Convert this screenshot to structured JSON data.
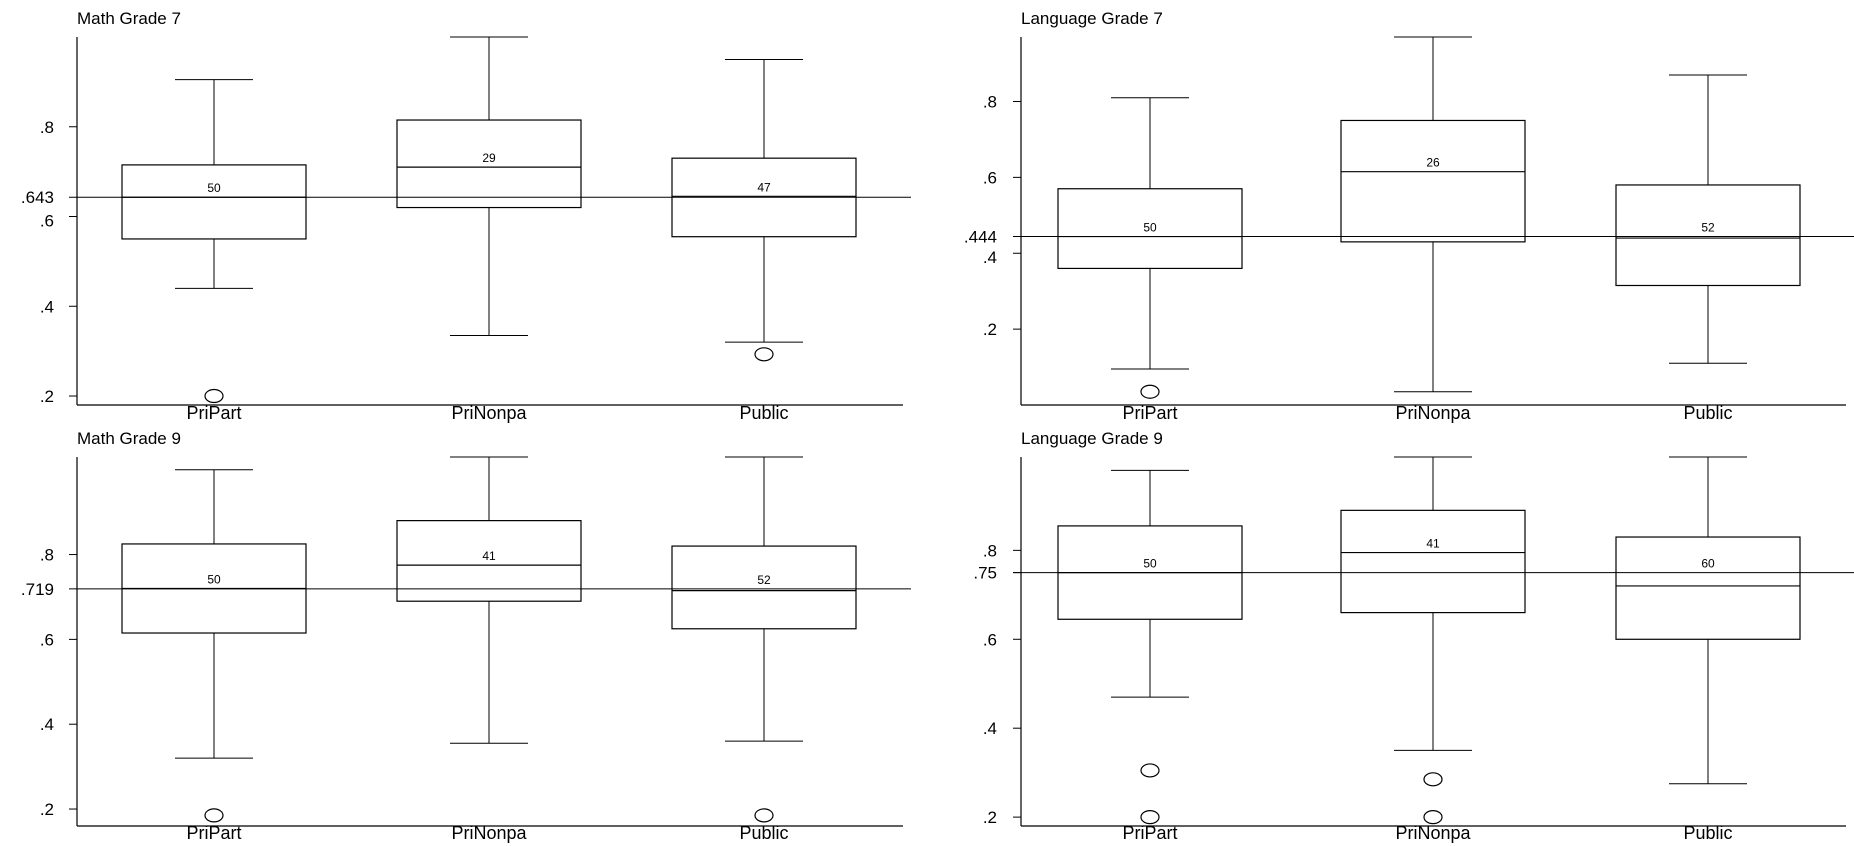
{
  "chart_data": [
    {
      "type": "box",
      "title": "Math Grade 7",
      "categories": [
        "PriPart",
        "PriNonpa",
        "Public"
      ],
      "ylim": [
        0.18,
        1.0
      ],
      "yticks": [
        ".2",
        ".4",
        ".6",
        ".8"
      ],
      "yticks_values": [
        0.2,
        0.4,
        0.6,
        0.8
      ],
      "reference_line": {
        "value": 0.643,
        "label": ".643"
      },
      "boxes": [
        {
          "category": "PriPart",
          "min": 0.44,
          "q1": 0.55,
          "median": 0.643,
          "q3": 0.715,
          "max": 0.905,
          "n": "50",
          "outliers": [
            0.2
          ]
        },
        {
          "category": "PriNonpa",
          "min": 0.335,
          "q1": 0.62,
          "median": 0.71,
          "q3": 0.815,
          "max": 1.0,
          "n": "29",
          "outliers": []
        },
        {
          "category": "Public",
          "min": 0.32,
          "q1": 0.555,
          "median": 0.645,
          "q3": 0.73,
          "max": 0.95,
          "n": "47",
          "outliers": [
            0.293
          ]
        }
      ]
    },
    {
      "type": "box",
      "title": "Language Grade 7",
      "categories": [
        "PriPart",
        "PriNonpa",
        "Public"
      ],
      "ylim": [
        0.0,
        0.97
      ],
      "yticks": [
        ".2",
        ".4",
        ".6",
        ".8"
      ],
      "yticks_values": [
        0.2,
        0.4,
        0.6,
        0.8
      ],
      "reference_line": {
        "value": 0.444,
        "label": ".444"
      },
      "boxes": [
        {
          "category": "PriPart",
          "min": 0.095,
          "q1": 0.36,
          "median": 0.444,
          "q3": 0.57,
          "max": 0.81,
          "n": "50",
          "outliers": [
            0.035
          ]
        },
        {
          "category": "PriNonpa",
          "min": 0.035,
          "q1": 0.43,
          "median": 0.615,
          "q3": 0.75,
          "max": 0.97,
          "n": "26",
          "outliers": []
        },
        {
          "category": "Public",
          "min": 0.11,
          "q1": 0.315,
          "median": 0.44,
          "q3": 0.58,
          "max": 0.87,
          "n": "52",
          "outliers": []
        }
      ]
    },
    {
      "type": "box",
      "title": "Math Grade 9",
      "categories": [
        "PriPart",
        "PriNonpa",
        "Public"
      ],
      "ylim": [
        0.16,
        1.03
      ],
      "yticks": [
        ".2",
        ".4",
        ".6",
        ".8"
      ],
      "yticks_values": [
        0.2,
        0.4,
        0.6,
        0.8
      ],
      "reference_line": {
        "value": 0.719,
        "label": ".719"
      },
      "boxes": [
        {
          "category": "PriPart",
          "min": 0.32,
          "q1": 0.615,
          "median": 0.72,
          "q3": 0.825,
          "max": 1.0,
          "n": "50",
          "outliers": [
            0.185
          ]
        },
        {
          "category": "PriNonpa",
          "min": 0.355,
          "q1": 0.69,
          "median": 0.775,
          "q3": 0.88,
          "max": 1.03,
          "n": "41",
          "outliers": []
        },
        {
          "category": "Public",
          "min": 0.36,
          "q1": 0.625,
          "median": 0.715,
          "q3": 0.82,
          "max": 1.03,
          "n": "52",
          "outliers": [
            0.185
          ]
        }
      ]
    },
    {
      "type": "box",
      "title": "Language Grade 9",
      "categories": [
        "PriPart",
        "PriNonpa",
        "Public"
      ],
      "ylim": [
        0.18,
        1.01
      ],
      "yticks": [
        ".2",
        ".4",
        ".6",
        ".8"
      ],
      "yticks_values": [
        0.2,
        0.4,
        0.6,
        0.8
      ],
      "extra_tick": {
        "value": 0.75,
        "label": ".75"
      },
      "reference_line": {
        "value": 0.75,
        "label": ""
      },
      "boxes": [
        {
          "category": "PriPart",
          "min": 0.47,
          "q1": 0.645,
          "median": 0.75,
          "q3": 0.855,
          "max": 0.98,
          "n": "50",
          "outliers": [
            0.305,
            0.2
          ]
        },
        {
          "category": "PriNonpa",
          "min": 0.35,
          "q1": 0.66,
          "median": 0.795,
          "q3": 0.89,
          "max": 1.01,
          "n": "41",
          "outliers": [
            0.285,
            0.2
          ]
        },
        {
          "category": "Public",
          "min": 0.275,
          "q1": 0.6,
          "median": 0.72,
          "q3": 0.83,
          "max": 1.01,
          "n": "60",
          "outliers": []
        }
      ]
    }
  ]
}
